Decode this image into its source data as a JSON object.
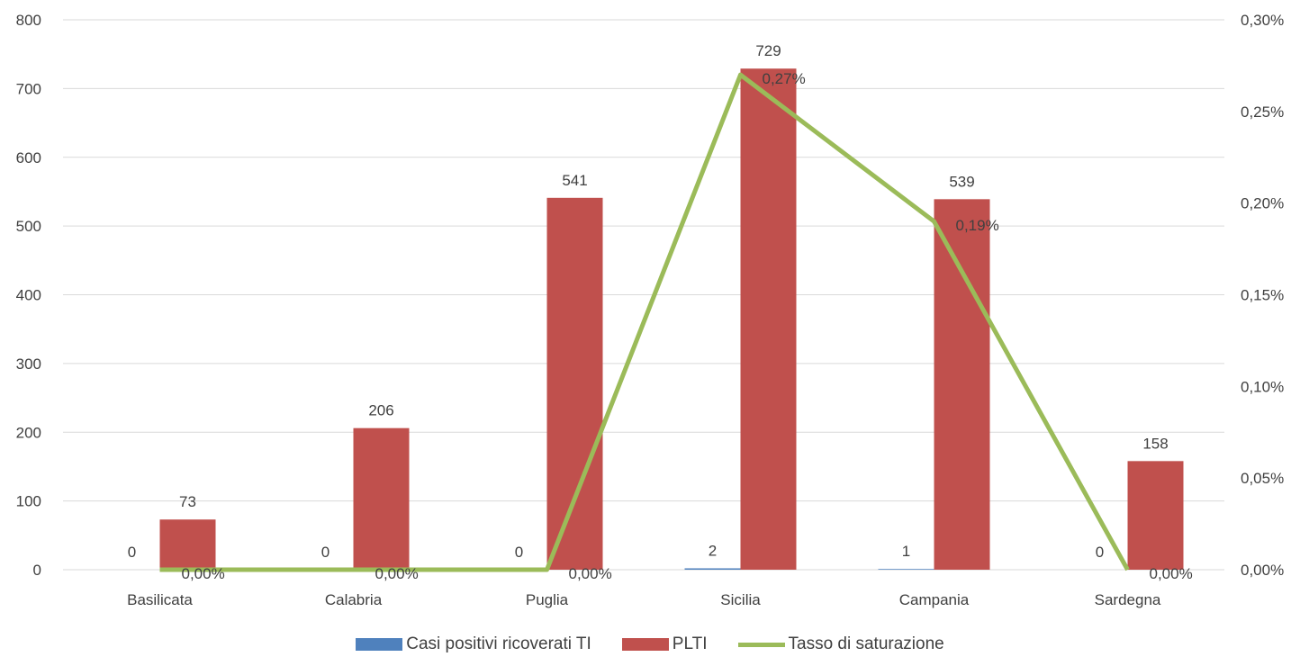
{
  "chart_data": {
    "type": "bar",
    "categories": [
      "Basilicata",
      "Calabria",
      "Puglia",
      "Sicilia",
      "Campania",
      "Sardegna"
    ],
    "series": [
      {
        "name": "Casi positivi ricoverati TI",
        "kind": "bar",
        "axis": "left",
        "color": "#4F81BD",
        "values": [
          0,
          0,
          0,
          2,
          1,
          0
        ],
        "labels": [
          "0",
          "0",
          "0",
          "2",
          "1",
          "0"
        ]
      },
      {
        "name": "PLTI",
        "kind": "bar",
        "axis": "left",
        "color": "#C0504D",
        "values": [
          73,
          206,
          541,
          729,
          539,
          158
        ],
        "labels": [
          "73",
          "206",
          "541",
          "729",
          "539",
          "158"
        ]
      },
      {
        "name": "Tasso di saturazione",
        "kind": "line",
        "axis": "right",
        "color": "#9BBB59",
        "values": [
          0.0,
          0.0,
          0.0,
          0.27,
          0.19,
          0.0
        ],
        "labels": [
          "0,00%",
          "0,00%",
          "0,00%",
          "0,27%",
          "0,19%",
          "0,00%"
        ]
      }
    ],
    "y_left": {
      "min": 0,
      "max": 800,
      "ticks": [
        "0",
        "100",
        "200",
        "300",
        "400",
        "500",
        "600",
        "700",
        "800"
      ]
    },
    "y_right": {
      "min": 0,
      "max": 0.3,
      "ticks": [
        "0,00%",
        "0,05%",
        "0,10%",
        "0,15%",
        "0,20%",
        "0,25%",
        "0,30%"
      ]
    },
    "grid": true,
    "legend_position": "bottom"
  }
}
